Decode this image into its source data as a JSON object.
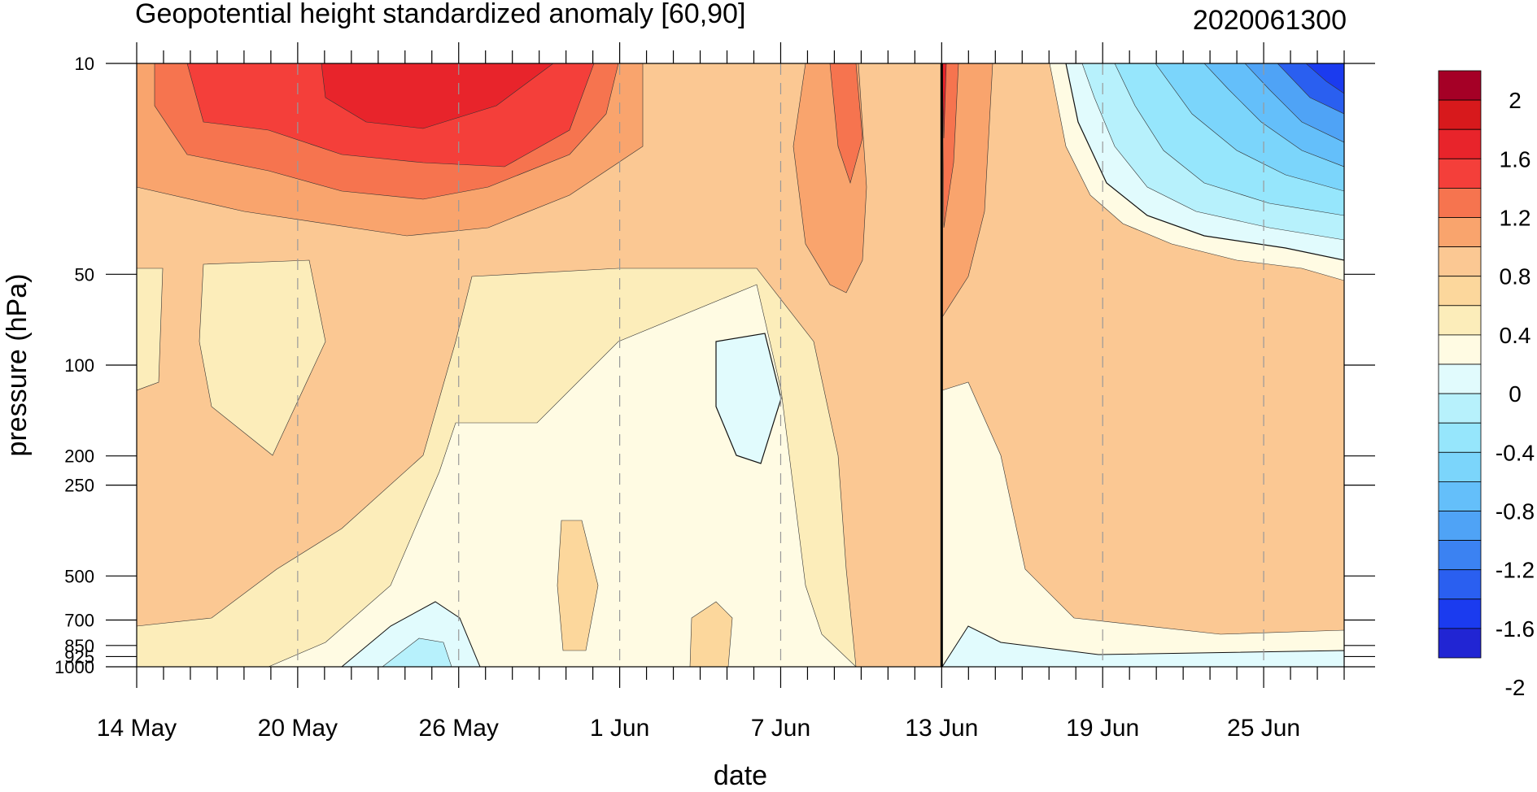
{
  "chart_data": {
    "type": "heatmap",
    "title": "Geopotential height standardized anomaly [60,90]",
    "date_label": "2020061300",
    "xlabel": "date",
    "ylabel": "pressure (hPa)",
    "x_ticks": [
      "14 May",
      "20 May",
      "26 May",
      "1 Jun",
      "7 Jun",
      "13 Jun",
      "19 Jun",
      "25 Jun"
    ],
    "x_days": [
      0,
      6,
      12,
      18,
      24,
      30,
      36,
      42
    ],
    "x_range_days": [
      0,
      45
    ],
    "current_day": 30,
    "y_ticks": [
      "10",
      "50",
      "100",
      "200",
      "250",
      "500",
      "700",
      "850",
      "925",
      "1000"
    ],
    "y_pressure": [
      10,
      50,
      100,
      200,
      250,
      500,
      700,
      850,
      925,
      1000
    ],
    "y_scale": "log",
    "y_range": [
      1000,
      10
    ],
    "colorbar": {
      "labels": [
        "2",
        "1.6",
        "1.2",
        "0.8",
        "0.4",
        "0",
        "-0.4",
        "-0.8",
        "-1.2",
        "-1.6",
        "-2"
      ],
      "colors": [
        "#a50026",
        "#d7191c",
        "#e8242b",
        "#f43f3a",
        "#f6744f",
        "#f9a46d",
        "#fbc893",
        "#fcd79c",
        "#fcedba",
        "#fffbe3",
        "#e1fbfd",
        "#b7f1fc",
        "#96e6fc",
        "#7bd5fb",
        "#64bffa",
        "#4fa3f6",
        "#3b82f2",
        "#2a5ff0",
        "#1b3bef",
        "#2125d3"
      ]
    },
    "fields": [
      {
        "day": 0,
        "anomaly": [
          0.9,
          0.6,
          0.3,
          0.3,
          0.3,
          0.3,
          0.2,
          0.2,
          0.2,
          0.2
        ]
      },
      {
        "day": 6,
        "anomaly": [
          1.8,
          0.5,
          0.2,
          0.3,
          0.3,
          0.3,
          0.2,
          0.1,
          0.1,
          0.1
        ]
      },
      {
        "day": 12,
        "anomaly": [
          1.9,
          0.7,
          0.4,
          0.1,
          0.0,
          -0.1,
          -0.2,
          -0.3,
          -0.3,
          -0.2
        ]
      },
      {
        "day": 18,
        "anomaly": [
          1.4,
          0.6,
          0.3,
          0.1,
          0.05,
          0.05,
          0.05,
          0.05,
          0.05,
          0.05
        ]
      },
      {
        "day": 22,
        "anomaly": [
          0.6,
          0.35,
          0.1,
          -0.1,
          0.1,
          0.3,
          0.2,
          0.1,
          0.1,
          0.1
        ]
      },
      {
        "day": 25,
        "anomaly": [
          1.3,
          0.8,
          0.5,
          0.3,
          0.3,
          0.2,
          0.1,
          0.0,
          0.0,
          0.0
        ]
      },
      {
        "day": 30,
        "anomaly": [
          2.0,
          1.0,
          0.7,
          0.5,
          0.4,
          0.3,
          0.1,
          0.0,
          -0.1,
          -0.1
        ]
      },
      {
        "day": 36,
        "anomaly": [
          -0.6,
          0.3,
          0.5,
          0.6,
          0.6,
          0.5,
          0.3,
          0.1,
          0.0,
          0.0
        ]
      },
      {
        "day": 45,
        "anomaly": [
          -2.1,
          0.1,
          0.5,
          0.6,
          0.6,
          0.5,
          0.3,
          0.1,
          0.0,
          0.0
        ]
      }
    ]
  }
}
